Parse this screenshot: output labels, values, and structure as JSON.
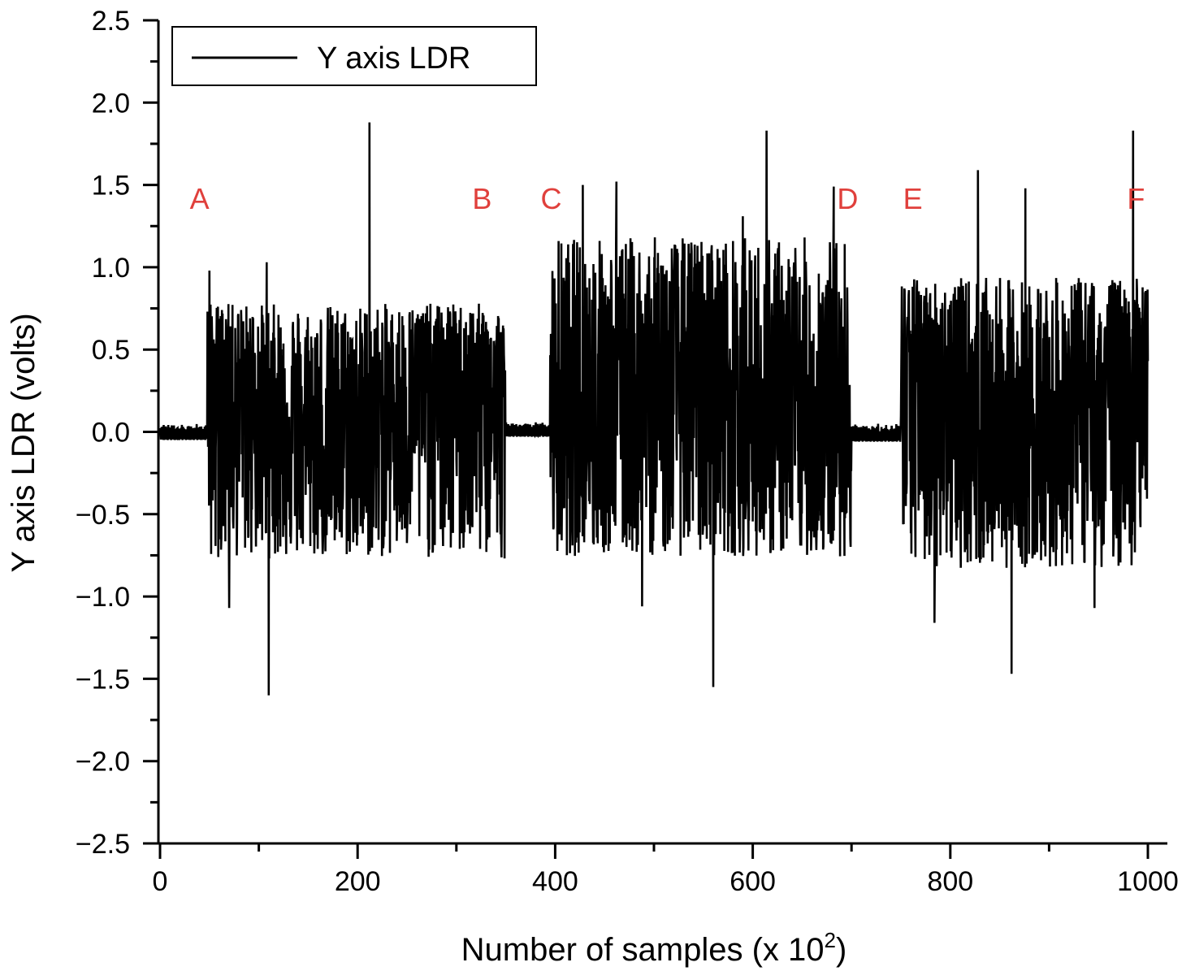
{
  "chart_data": {
    "type": "line",
    "title": "",
    "xlabel": "Number of samples (x 10",
    "xlabel_sup": "2",
    "xlabel_close": ")",
    "ylabel": "Y axis LDR (volts)",
    "xlim": [
      0,
      1000
    ],
    "ylim": [
      -2.5,
      2.5
    ],
    "xticks": [
      "0",
      "200",
      "400",
      "600",
      "800",
      "1000"
    ],
    "yticks": [
      "2.5",
      "2.0",
      "1.5",
      "1.0",
      "0.5",
      "0.0",
      "−0.5",
      "−1.0",
      "−1.5",
      "−2.0",
      "−2.5"
    ],
    "grid": false,
    "legend_position": "top-left",
    "series": [
      {
        "name": "Y axis LDR",
        "color": "#000000",
        "segments": [
          {
            "x_start": 0,
            "x_end": 48,
            "level": "quiet",
            "min": -0.05,
            "max": 0.05
          },
          {
            "x_start": 48,
            "x_end": 350,
            "level": "active",
            "min": -1.07,
            "max": 1.0
          },
          {
            "x_start": 350,
            "x_end": 395,
            "level": "quiet",
            "min": -0.03,
            "max": 0.06
          },
          {
            "x_start": 395,
            "x_end": 700,
            "level": "active",
            "min": -1.05,
            "max": 1.52
          },
          {
            "x_start": 700,
            "x_end": 750,
            "level": "quiet",
            "min": -0.06,
            "max": 0.05
          },
          {
            "x_start": 750,
            "x_end": 1000,
            "level": "active",
            "min": -1.15,
            "max": 1.2
          }
        ],
        "peaks": [
          {
            "x": 50,
            "y": 0.98
          },
          {
            "x": 70,
            "y": -1.07
          },
          {
            "x": 110,
            "y": -1.6
          },
          {
            "x": 108,
            "y": 1.03
          },
          {
            "x": 212,
            "y": 1.88
          },
          {
            "x": 428,
            "y": 1.5
          },
          {
            "x": 462,
            "y": 1.52
          },
          {
            "x": 488,
            "y": -1.06
          },
          {
            "x": 560,
            "y": -1.55
          },
          {
            "x": 590,
            "y": 1.31
          },
          {
            "x": 614,
            "y": 1.83
          },
          {
            "x": 682,
            "y": 1.49
          },
          {
            "x": 784,
            "y": -1.16
          },
          {
            "x": 828,
            "y": 1.59
          },
          {
            "x": 862,
            "y": -1.47
          },
          {
            "x": 876,
            "y": 1.48
          },
          {
            "x": 946,
            "y": -1.07
          },
          {
            "x": 985,
            "y": 1.83
          },
          {
            "x": 1000,
            "y": 0.43
          }
        ]
      }
    ],
    "annotations": [
      {
        "label": "A",
        "x": 40,
        "y": 1.42
      },
      {
        "label": "B",
        "x": 326,
        "y": 1.42
      },
      {
        "label": "C",
        "x": 396,
        "y": 1.42
      },
      {
        "label": "D",
        "x": 696,
        "y": 1.42
      },
      {
        "label": "E",
        "x": 762,
        "y": 1.42
      },
      {
        "label": "F",
        "x": 988,
        "y": 1.42
      }
    ]
  }
}
